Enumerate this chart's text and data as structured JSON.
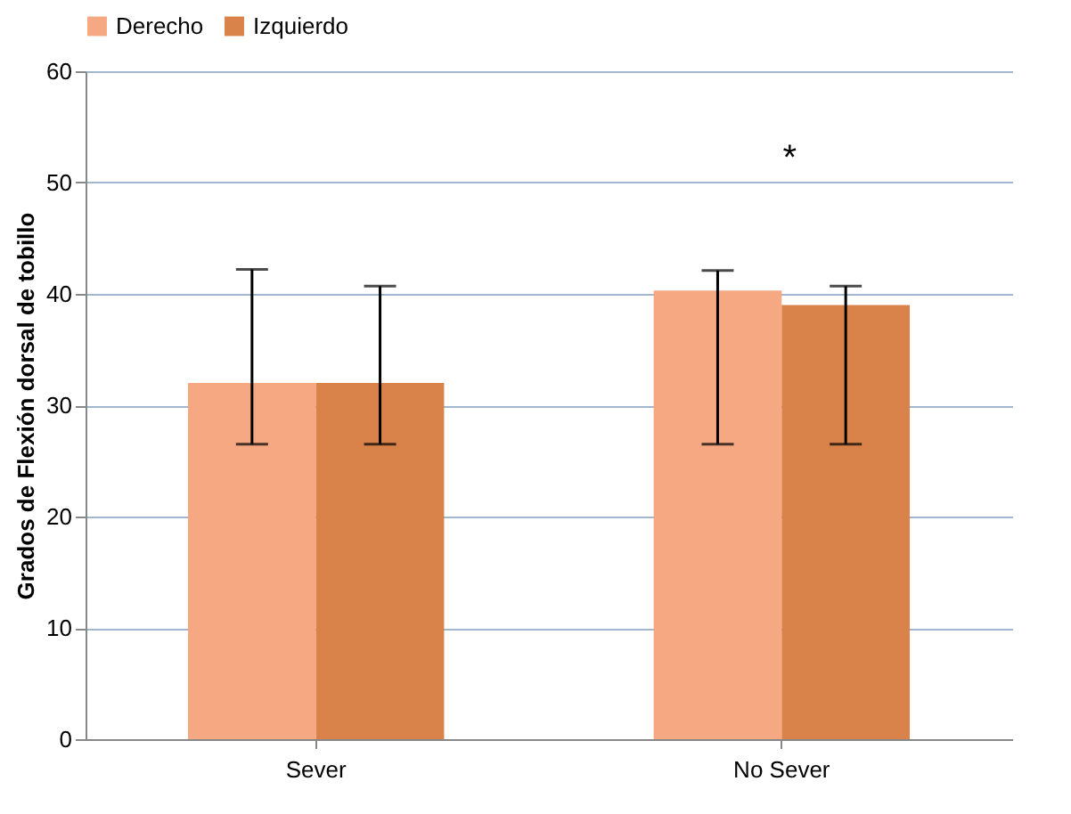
{
  "chart_data": {
    "type": "bar",
    "ylabel": "Grados de Flexión dorsal de tobillo",
    "categories": [
      "Sever",
      "No Sever"
    ],
    "series": [
      {
        "name": "Derecho",
        "color": "#f5a882",
        "values": [
          32,
          40.3
        ],
        "errors": [
          [
            26.5,
            42.2
          ],
          [
            26.5,
            42.1
          ]
        ]
      },
      {
        "name": "Izquierdo",
        "color": "#d9834a",
        "values": [
          32,
          39
        ],
        "errors": [
          [
            26.5,
            40.7
          ],
          [
            26.5,
            40.7
          ]
        ]
      }
    ],
    "ylim": [
      0,
      60
    ],
    "yticks": [
      0,
      10,
      20,
      30,
      40,
      50,
      60
    ],
    "grid": "y",
    "legend": "top",
    "annotations": [
      "*"
    ]
  }
}
